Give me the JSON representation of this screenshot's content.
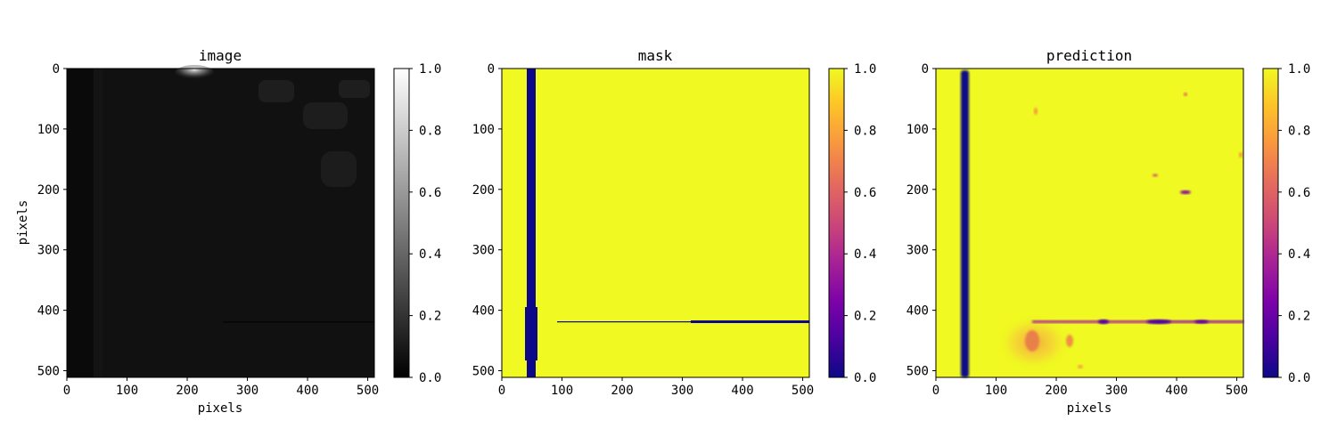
{
  "chart_data": [
    {
      "type": "heatmap",
      "title": "image",
      "xlabel": "pixels",
      "ylabel": "pixels",
      "xlim": [
        0,
        511
      ],
      "ylim": [
        511,
        0
      ],
      "xticks": [
        0,
        100,
        200,
        300,
        400,
        500
      ],
      "yticks": [
        0,
        100,
        200,
        300,
        400,
        500
      ],
      "colormap": "gray",
      "colorbar": {
        "min": 0.0,
        "max": 1.0,
        "ticks": [
          "0.0",
          "0.2",
          "0.4",
          "0.6",
          "0.8",
          "1.0"
        ]
      },
      "features": [
        {
          "kind": "bright-region",
          "x": [
            190,
            240
          ],
          "y": [
            0,
            15
          ],
          "value": 0.85
        },
        {
          "kind": "faint-band",
          "x": [
            0,
            511
          ],
          "y": [
            421,
            423
          ],
          "value": 0.0
        }
      ]
    },
    {
      "type": "heatmap",
      "title": "mask",
      "xlabel": "",
      "ylabel": "",
      "xlim": [
        0,
        511
      ],
      "ylim": [
        511,
        0
      ],
      "xticks": [
        0,
        100,
        200,
        300,
        400,
        500
      ],
      "yticks": [
        0,
        100,
        200,
        300,
        400,
        500
      ],
      "colormap": "plasma",
      "colorbar": {
        "min": 0.0,
        "max": 1.0,
        "ticks": [
          "0.0",
          "0.2",
          "0.4",
          "0.6",
          "0.8",
          "1.0"
        ]
      },
      "background_value": 1.0,
      "features": [
        {
          "kind": "vertical-line",
          "x": [
            42,
            57
          ],
          "y": [
            0,
            511
          ],
          "value": 0.0
        },
        {
          "kind": "horizontal-line",
          "x": [
            95,
            511
          ],
          "y": [
            421,
            424
          ],
          "value": 0.0
        }
      ]
    },
    {
      "type": "heatmap",
      "title": "prediction",
      "xlabel": "pixels",
      "ylabel": "",
      "xlim": [
        0,
        511
      ],
      "ylim": [
        511,
        0
      ],
      "xticks": [
        0,
        100,
        200,
        300,
        400,
        500
      ],
      "yticks": [
        0,
        100,
        200,
        300,
        400,
        500
      ],
      "colormap": "plasma",
      "colorbar": {
        "min": 0.0,
        "max": 1.0,
        "ticks": [
          "0.0",
          "0.2",
          "0.4",
          "0.6",
          "0.8",
          "1.0"
        ]
      },
      "background_value": 1.0,
      "features": [
        {
          "kind": "vertical-line",
          "x": [
            42,
            56
          ],
          "y": [
            0,
            511
          ],
          "value": 0.0
        },
        {
          "kind": "horizontal-line",
          "x": [
            160,
            511
          ],
          "y": [
            420,
            424
          ],
          "value": 0.45
        },
        {
          "kind": "blob",
          "x": [
            150,
            230
          ],
          "y": [
            420,
            500
          ],
          "value": 0.75
        },
        {
          "kind": "spot",
          "x": [
            410,
            425
          ],
          "y": [
            205,
            210
          ],
          "value": 0.1
        }
      ]
    }
  ]
}
